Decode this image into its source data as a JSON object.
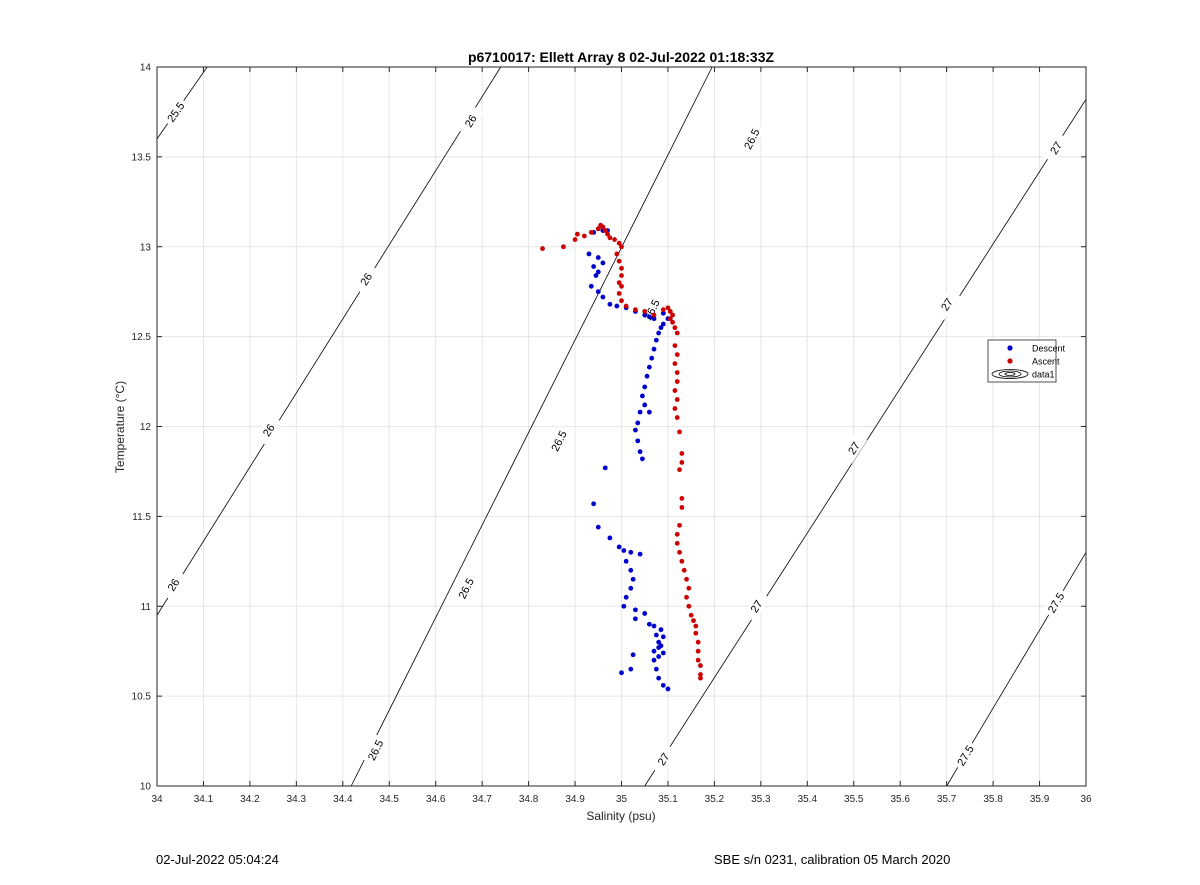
{
  "chart_data": {
    "type": "scatter",
    "title": "p6710017: Ellett Array 8 02-Jul-2022 01:18:33Z",
    "xlabel": "Salinity (psu)",
    "ylabel": "Temperature (°C)",
    "xlim": [
      34,
      36
    ],
    "ylim": [
      10,
      14
    ],
    "xticks": [
      "34",
      "34.1",
      "34.2",
      "34.3",
      "34.4",
      "34.5",
      "34.6",
      "34.7",
      "34.8",
      "34.9",
      "35",
      "35.1",
      "35.2",
      "35.3",
      "35.4",
      "35.5",
      "35.6",
      "35.7",
      "35.8",
      "35.9",
      "36"
    ],
    "yticks": [
      "10",
      "10.5",
      "11",
      "11.5",
      "12",
      "12.5",
      "13",
      "13.5",
      "14"
    ],
    "grid": true,
    "legend_position": "right",
    "legend": [
      "Descent",
      "Ascent",
      "data1"
    ],
    "colors": {
      "descent": "#0000cc",
      "ascent": "#cc0000",
      "contour": "#000000",
      "grid": "#e6e6e6"
    },
    "contours": [
      {
        "label": "25.5",
        "from": [
          34.0,
          13.6
        ],
        "to": [
          34.108,
          14.0
        ],
        "label_positions": [
          [
            34.04,
            13.75
          ]
        ]
      },
      {
        "label": "26",
        "from": [
          34.0,
          10.95
        ],
        "to": [
          34.74,
          14.0
        ],
        "label_positions": [
          [
            34.035,
            11.12
          ],
          [
            34.24,
            11.98
          ],
          [
            34.45,
            12.82
          ],
          [
            34.675,
            13.7
          ]
        ]
      },
      {
        "label": "26.5",
        "from": [
          34.418,
          10.0
        ],
        "to": [
          35.195,
          14.0
        ],
        "label_positions": [
          [
            34.47,
            10.2
          ],
          [
            34.665,
            11.1
          ],
          [
            34.865,
            11.92
          ],
          [
            35.065,
            12.65
          ],
          [
            35.28,
            13.6
          ]
        ]
      },
      {
        "label": "27",
        "from": [
          35.05,
          10.0
        ],
        "to": [
          36.0,
          13.82
        ],
        "label_positions": [
          [
            35.09,
            10.15
          ],
          [
            35.29,
            11.0
          ],
          [
            35.5,
            11.88
          ],
          [
            35.7,
            12.68
          ],
          [
            35.935,
            13.55
          ]
        ]
      },
      {
        "label": "27.5",
        "from": [
          35.7,
          10.0
        ],
        "to": [
          36.0,
          11.3
        ],
        "label_positions": [
          [
            35.74,
            10.17
          ],
          [
            35.935,
            11.02
          ]
        ]
      }
    ],
    "series": [
      {
        "name": "Descent",
        "points": [
          [
            34.94,
            13.08
          ],
          [
            34.95,
            13.1
          ],
          [
            34.96,
            13.09
          ],
          [
            34.97,
            13.09
          ],
          [
            34.93,
            12.96
          ],
          [
            34.95,
            12.94
          ],
          [
            34.96,
            12.91
          ],
          [
            34.95,
            12.86
          ],
          [
            34.94,
            12.89
          ],
          [
            34.945,
            12.84
          ],
          [
            34.935,
            12.78
          ],
          [
            34.95,
            12.75
          ],
          [
            34.96,
            12.72
          ],
          [
            34.975,
            12.68
          ],
          [
            34.99,
            12.67
          ],
          [
            35.01,
            12.66
          ],
          [
            35.03,
            12.64
          ],
          [
            35.05,
            12.62
          ],
          [
            35.06,
            12.61
          ],
          [
            35.07,
            12.6
          ],
          [
            35.09,
            12.63
          ],
          [
            35.1,
            12.6
          ],
          [
            35.09,
            12.57
          ],
          [
            35.085,
            12.55
          ],
          [
            35.08,
            12.52
          ],
          [
            35.075,
            12.48
          ],
          [
            35.07,
            12.43
          ],
          [
            35.065,
            12.38
          ],
          [
            35.06,
            12.33
          ],
          [
            35.055,
            12.28
          ],
          [
            35.05,
            12.22
          ],
          [
            35.045,
            12.17
          ],
          [
            35.05,
            12.12
          ],
          [
            35.04,
            12.08
          ],
          [
            35.06,
            12.08
          ],
          [
            35.035,
            12.02
          ],
          [
            35.03,
            11.98
          ],
          [
            35.035,
            11.92
          ],
          [
            35.04,
            11.86
          ],
          [
            35.045,
            11.82
          ],
          [
            34.965,
            11.77
          ],
          [
            34.94,
            11.57
          ],
          [
            34.95,
            11.44
          ],
          [
            34.975,
            11.38
          ],
          [
            34.995,
            11.33
          ],
          [
            35.005,
            11.31
          ],
          [
            35.02,
            11.3
          ],
          [
            35.04,
            11.29
          ],
          [
            35.01,
            11.25
          ],
          [
            35.02,
            11.2
          ],
          [
            35.025,
            11.15
          ],
          [
            35.02,
            11.1
          ],
          [
            35.01,
            11.05
          ],
          [
            35.005,
            11.0
          ],
          [
            35.03,
            10.98
          ],
          [
            35.05,
            10.96
          ],
          [
            35.03,
            10.93
          ],
          [
            35.06,
            10.9
          ],
          [
            35.07,
            10.89
          ],
          [
            35.085,
            10.87
          ],
          [
            35.075,
            10.84
          ],
          [
            35.09,
            10.83
          ],
          [
            35.08,
            10.8
          ],
          [
            35.085,
            10.78
          ],
          [
            35.08,
            10.77
          ],
          [
            35.07,
            10.75
          ],
          [
            35.09,
            10.74
          ],
          [
            35.08,
            10.72
          ],
          [
            35.025,
            10.73
          ],
          [
            35.07,
            10.7
          ],
          [
            35.02,
            10.65
          ],
          [
            35.075,
            10.65
          ],
          [
            35.0,
            10.63
          ],
          [
            35.08,
            10.6
          ],
          [
            35.09,
            10.56
          ],
          [
            35.1,
            10.54
          ]
        ]
      },
      {
        "name": "Ascent",
        "points": [
          [
            34.83,
            12.99
          ],
          [
            34.875,
            13.0
          ],
          [
            34.9,
            13.04
          ],
          [
            34.905,
            13.07
          ],
          [
            34.92,
            13.06
          ],
          [
            34.935,
            13.08
          ],
          [
            34.95,
            13.1
          ],
          [
            34.955,
            13.12
          ],
          [
            34.96,
            13.11
          ],
          [
            34.965,
            13.09
          ],
          [
            34.97,
            13.07
          ],
          [
            34.975,
            13.05
          ],
          [
            34.985,
            13.04
          ],
          [
            34.995,
            13.02
          ],
          [
            35.0,
            13.0
          ],
          [
            34.99,
            12.96
          ],
          [
            34.995,
            12.92
          ],
          [
            35.0,
            12.88
          ],
          [
            35.0,
            12.84
          ],
          [
            34.995,
            12.8
          ],
          [
            35.0,
            12.78
          ],
          [
            34.995,
            12.74
          ],
          [
            35.0,
            12.7
          ],
          [
            35.01,
            12.67
          ],
          [
            35.03,
            12.65
          ],
          [
            35.05,
            12.64
          ],
          [
            35.07,
            12.62
          ],
          [
            35.09,
            12.65
          ],
          [
            35.1,
            12.66
          ],
          [
            35.105,
            12.64
          ],
          [
            35.11,
            12.62
          ],
          [
            35.105,
            12.6
          ],
          [
            35.11,
            12.58
          ],
          [
            35.115,
            12.55
          ],
          [
            35.12,
            12.52
          ],
          [
            35.115,
            12.45
          ],
          [
            35.12,
            12.4
          ],
          [
            35.115,
            12.35
          ],
          [
            35.12,
            12.3
          ],
          [
            35.12,
            12.25
          ],
          [
            35.115,
            12.2
          ],
          [
            35.12,
            12.15
          ],
          [
            35.115,
            12.1
          ],
          [
            35.12,
            12.05
          ],
          [
            35.125,
            11.97
          ],
          [
            35.13,
            11.85
          ],
          [
            35.13,
            11.8
          ],
          [
            35.125,
            11.76
          ],
          [
            35.13,
            11.6
          ],
          [
            35.13,
            11.55
          ],
          [
            35.125,
            11.45
          ],
          [
            35.12,
            11.4
          ],
          [
            35.12,
            11.35
          ],
          [
            35.125,
            11.3
          ],
          [
            35.13,
            11.25
          ],
          [
            35.135,
            11.2
          ],
          [
            35.14,
            11.15
          ],
          [
            35.145,
            11.1
          ],
          [
            35.14,
            11.05
          ],
          [
            35.145,
            11.0
          ],
          [
            35.15,
            10.95
          ],
          [
            35.155,
            10.92
          ],
          [
            35.16,
            10.89
          ],
          [
            35.16,
            10.85
          ],
          [
            35.165,
            10.8
          ],
          [
            35.165,
            10.75
          ],
          [
            35.165,
            10.7
          ],
          [
            35.17,
            10.67
          ],
          [
            35.17,
            10.62
          ],
          [
            35.17,
            10.6
          ]
        ]
      }
    ]
  },
  "footer": {
    "left": "02-Jul-2022 05:04:24",
    "right": "SBE s/n 0231, calibration 05 March 2020"
  }
}
